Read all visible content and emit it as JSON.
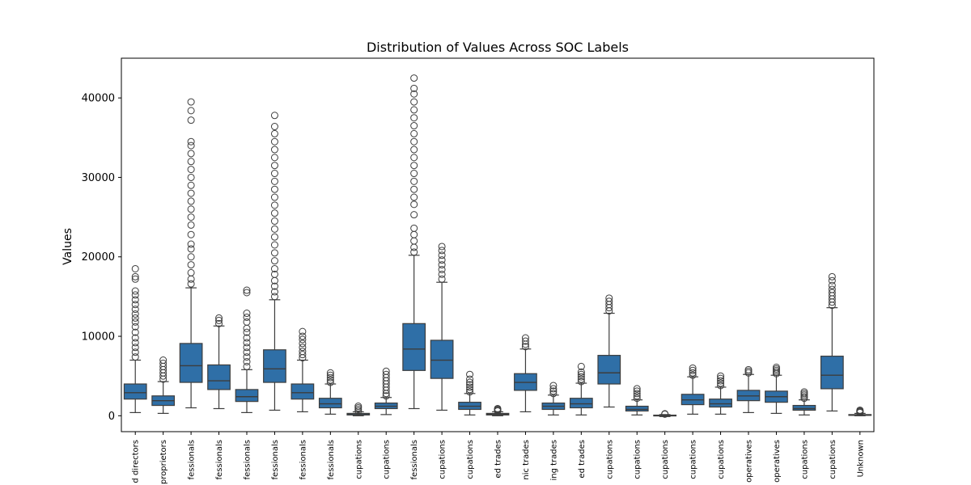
{
  "chart_data": {
    "type": "box",
    "title": "Distribution of Values Across SOC Labels",
    "xlabel": "",
    "ylabel": "Values",
    "ylim": [
      -2000,
      45000
    ],
    "yticks": [
      0,
      10000,
      20000,
      30000,
      40000
    ],
    "grid": false,
    "box_color": "#2f6fa7",
    "line_color": "#3d3d3d",
    "categories": [
      "d directors",
      "proprietors",
      "fessionals",
      "fessionals",
      "fessionals",
      "fessionals",
      "fessionals",
      "fessionals",
      "cupations",
      "cupations",
      "fessionals",
      "cupations",
      "cupations",
      "ed trades",
      "nic trades",
      "ing trades",
      "ed trades",
      "cupations",
      "cupations",
      "cupations",
      "cupations",
      "cupations",
      "operatives",
      "operatives",
      "cupations",
      "cupations",
      "Unknown"
    ],
    "boxes": [
      {
        "whislo": 400,
        "q1": 2100,
        "med": 2900,
        "q3": 4000,
        "whishi": 7000,
        "fliers": [
          7400,
          8000,
          8600,
          9200,
          9800,
          10500,
          11200,
          11800,
          12300,
          12800,
          13400,
          14000,
          14600,
          15200,
          15700,
          17200,
          17500,
          18500
        ]
      },
      {
        "whislo": 300,
        "q1": 1300,
        "med": 1900,
        "q3": 2500,
        "whishi": 4300,
        "fliers": [
          4600,
          5000,
          5400,
          5800,
          6200,
          6600,
          7000
        ]
      },
      {
        "whislo": 1000,
        "q1": 4200,
        "med": 6300,
        "q3": 9100,
        "whishi": 16100,
        "fliers": [
          16600,
          17200,
          18000,
          19000,
          20000,
          21000,
          21600,
          22800,
          24000,
          25000,
          26000,
          27000,
          28000,
          29000,
          30000,
          31000,
          32000,
          33000,
          34000,
          34500,
          37200,
          38400,
          39500
        ]
      },
      {
        "whislo": 900,
        "q1": 3300,
        "med": 4400,
        "q3": 6400,
        "whishi": 11300,
        "fliers": [
          11600,
          12000,
          12300
        ]
      },
      {
        "whislo": 400,
        "q1": 1800,
        "med": 2400,
        "q3": 3300,
        "whishi": 5800,
        "fliers": [
          6200,
          6800,
          7400,
          8000,
          8600,
          9200,
          9800,
          10500,
          11000,
          11800,
          12400,
          12900,
          15500,
          15800
        ]
      },
      {
        "whislo": 700,
        "q1": 4200,
        "med": 5900,
        "q3": 8300,
        "whishi": 14600,
        "fliers": [
          15000,
          15600,
          16300,
          17000,
          17800,
          18500,
          19500,
          20500,
          21500,
          22500,
          23500,
          24500,
          25500,
          26500,
          27500,
          28500,
          29500,
          30500,
          31500,
          32500,
          33500,
          34500,
          35500,
          36400,
          37800
        ]
      },
      {
        "whislo": 500,
        "q1": 2100,
        "med": 2900,
        "q3": 4000,
        "whishi": 7000,
        "fliers": [
          7300,
          7700,
          8100,
          8600,
          9100,
          9600,
          10000,
          10600
        ]
      },
      {
        "whislo": 200,
        "q1": 1000,
        "med": 1500,
        "q3": 2200,
        "whishi": 4000,
        "fliers": [
          4200,
          4500,
          4800,
          5100,
          5400
        ]
      },
      {
        "whislo": 0,
        "q1": 100,
        "med": 150,
        "q3": 300,
        "whishi": 500,
        "fliers": [
          600,
          800,
          1000,
          1200
        ]
      },
      {
        "whislo": 150,
        "q1": 900,
        "med": 1200,
        "q3": 1600,
        "whishi": 2300,
        "fliers": [
          2500,
          2800,
          3200,
          3600,
          4000,
          4400,
          4800,
          5200,
          5600
        ]
      },
      {
        "whislo": 900,
        "q1": 5700,
        "med": 8400,
        "q3": 11600,
        "whishi": 20200,
        "fliers": [
          20600,
          21200,
          22000,
          22800,
          23600,
          25300,
          26600,
          27500,
          28500,
          29500,
          30500,
          31500,
          32500,
          33500,
          34500,
          35500,
          36500,
          37500,
          38500,
          39500,
          40500,
          41200,
          42500
        ]
      },
      {
        "whislo": 700,
        "q1": 4700,
        "med": 7000,
        "q3": 9500,
        "whishi": 16800,
        "fliers": [
          17200,
          17800,
          18400,
          19000,
          19600,
          20200,
          20800,
          21300
        ]
      },
      {
        "whislo": 100,
        "q1": 800,
        "med": 1200,
        "q3": 1700,
        "whishi": 2800,
        "fliers": [
          3000,
          3300,
          3600,
          3900,
          4200,
          4600,
          5200
        ]
      },
      {
        "whislo": 0,
        "q1": 100,
        "med": 200,
        "q3": 300,
        "whishi": 500,
        "fliers": [
          600,
          700,
          800,
          900
        ]
      },
      {
        "whislo": 500,
        "q1": 3200,
        "med": 4200,
        "q3": 5300,
        "whishi": 8400,
        "fliers": [
          8700,
          9000,
          9400,
          9800
        ]
      },
      {
        "whislo": 100,
        "q1": 800,
        "med": 1200,
        "q3": 1600,
        "whishi": 2600,
        "fliers": [
          2800,
          3100,
          3400,
          3800
        ]
      },
      {
        "whislo": 100,
        "q1": 1000,
        "med": 1500,
        "q3": 2200,
        "whishi": 4100,
        "fliers": [
          4300,
          4600,
          4900,
          5200,
          5500,
          6200
        ]
      },
      {
        "whislo": 1100,
        "q1": 4000,
        "med": 5400,
        "q3": 7600,
        "whishi": 12900,
        "fliers": [
          13200,
          13600,
          14000,
          14400,
          14800
        ]
      },
      {
        "whislo": 100,
        "q1": 600,
        "med": 800,
        "q3": 1200,
        "whishi": 2000,
        "fliers": [
          2200,
          2500,
          2800,
          3100,
          3400
        ]
      },
      {
        "whislo": -100,
        "q1": 0,
        "med": 50,
        "q3": 80,
        "whishi": 150,
        "fliers": [
          200,
          250
        ]
      },
      {
        "whislo": 200,
        "q1": 1400,
        "med": 2000,
        "q3": 2700,
        "whishi": 4900,
        "fliers": [
          5100,
          5400,
          5700,
          6000
        ]
      },
      {
        "whislo": 200,
        "q1": 1100,
        "med": 1500,
        "q3": 2100,
        "whishi": 3600,
        "fliers": [
          3800,
          4100,
          4400,
          4700,
          5000
        ]
      },
      {
        "whislo": 400,
        "q1": 1900,
        "med": 2500,
        "q3": 3200,
        "whishi": 5200,
        "fliers": [
          5400,
          5600,
          5800
        ]
      },
      {
        "whislo": 300,
        "q1": 1700,
        "med": 2400,
        "q3": 3100,
        "whishi": 5100,
        "fliers": [
          5300,
          5500,
          5700,
          5900,
          6100
        ]
      },
      {
        "whislo": 100,
        "q1": 700,
        "med": 900,
        "q3": 1300,
        "whishi": 2000,
        "fliers": [
          2200,
          2400,
          2600,
          2800,
          3000
        ]
      },
      {
        "whislo": 600,
        "q1": 3400,
        "med": 5100,
        "q3": 7500,
        "whishi": 13600,
        "fliers": [
          13900,
          14300,
          14700,
          15100,
          15500,
          15900,
          16400,
          17000,
          17500
        ]
      },
      {
        "whislo": 0,
        "q1": 50,
        "med": 100,
        "q3": 150,
        "whishi": 300,
        "fliers": [
          400,
          500,
          600,
          700
        ]
      }
    ]
  }
}
